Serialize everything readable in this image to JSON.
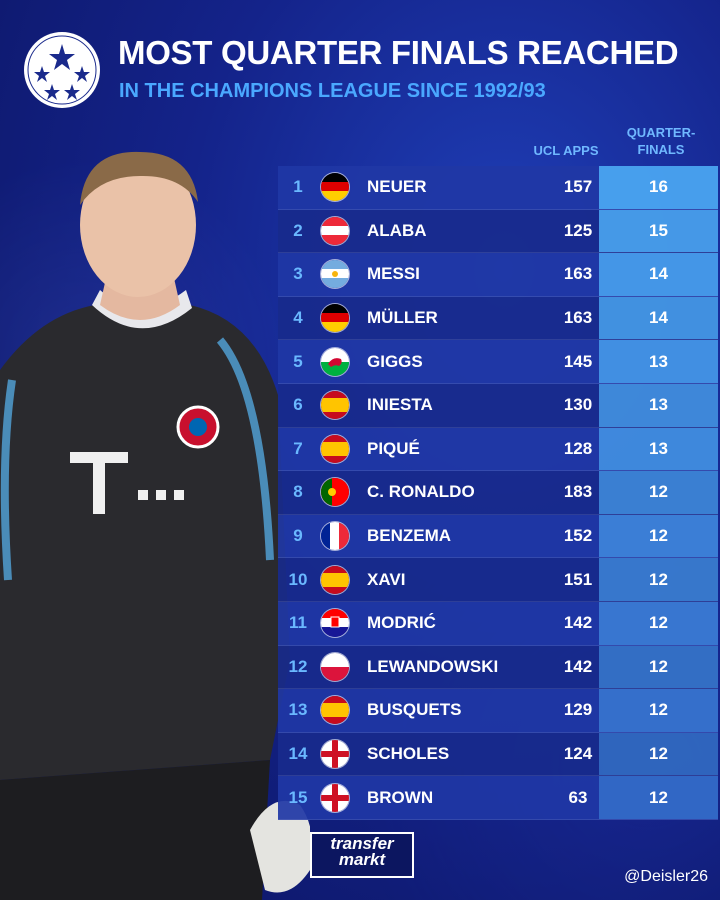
{
  "header": {
    "title": "MOST QUARTER FINALS REACHED",
    "subtitle": "IN THE CHAMPIONS LEAGUE SINCE 1992/93"
  },
  "columns": {
    "apps": "UCL APPS",
    "qf": "QUARTER-\nFINALS"
  },
  "colors": {
    "accent": "#4aa8ff",
    "row_odd": "#2037a5",
    "row_even": "#182a8c",
    "qf_column": "#4aa4f0"
  },
  "branding": {
    "logo_text": "transfer\nmarkt",
    "credit": "@Deisler26"
  },
  "chart_data": {
    "type": "table",
    "title": "MOST QUARTER FINALS REACHED",
    "subtitle": "IN THE CHAMPIONS LEAGUE SINCE 1992/93",
    "columns": [
      "",
      "",
      "",
      "UCL APPS",
      "QUARTER-FINALS"
    ],
    "rows": [
      {
        "rank": "1",
        "flag": "germany",
        "name": "NEUER",
        "apps": "157",
        "qf": "16"
      },
      {
        "rank": "2",
        "flag": "austria",
        "name": "ALABA",
        "apps": "125",
        "qf": "15"
      },
      {
        "rank": "3",
        "flag": "argentina",
        "name": "MESSI",
        "apps": "163",
        "qf": "14"
      },
      {
        "rank": "4",
        "flag": "germany",
        "name": "MÜLLER",
        "apps": "163",
        "qf": "14"
      },
      {
        "rank": "5",
        "flag": "wales",
        "name": "GIGGS",
        "apps": "145",
        "qf": "13"
      },
      {
        "rank": "6",
        "flag": "spain",
        "name": "INIESTA",
        "apps": "130",
        "qf": "13"
      },
      {
        "rank": "7",
        "flag": "spain",
        "name": "PIQUÉ",
        "apps": "128",
        "qf": "13"
      },
      {
        "rank": "8",
        "flag": "portugal",
        "name": "C. RONALDO",
        "apps": "183",
        "qf": "12"
      },
      {
        "rank": "9",
        "flag": "france",
        "name": "BENZEMA",
        "apps": "152",
        "qf": "12"
      },
      {
        "rank": "10",
        "flag": "spain",
        "name": "XAVI",
        "apps": "151",
        "qf": "12"
      },
      {
        "rank": "11",
        "flag": "croatia",
        "name": "MODRIĆ",
        "apps": "142",
        "qf": "12"
      },
      {
        "rank": "12",
        "flag": "poland",
        "name": "LEWANDOWSKI",
        "apps": "142",
        "qf": "12"
      },
      {
        "rank": "13",
        "flag": "spain",
        "name": "BUSQUETS",
        "apps": "129",
        "qf": "12"
      },
      {
        "rank": "14",
        "flag": "england",
        "name": "SCHOLES",
        "apps": "124",
        "qf": "12"
      },
      {
        "rank": "15",
        "flag": "england",
        "name": "BROWN",
        "apps": "63",
        "qf": "12"
      }
    ]
  }
}
